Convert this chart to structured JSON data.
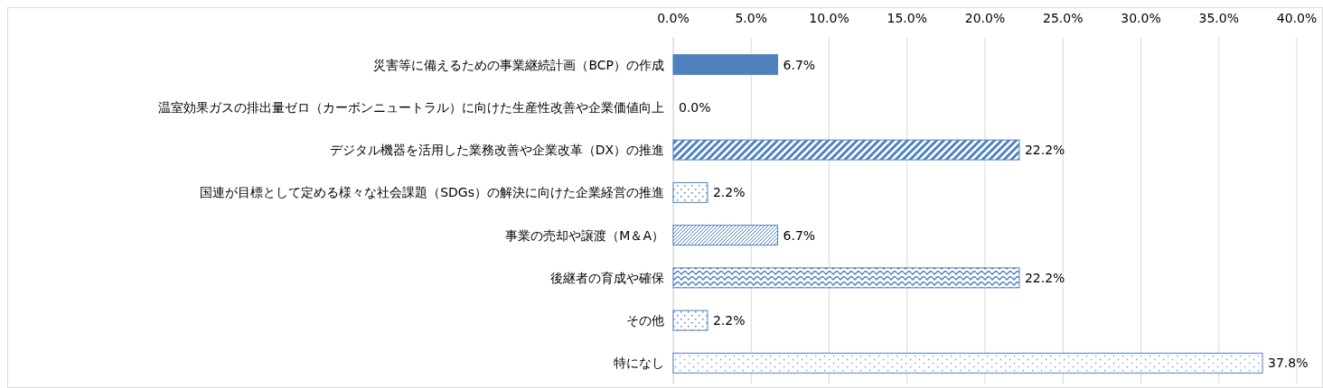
{
  "chart_data": {
    "type": "bar",
    "orientation": "horizontal",
    "categories": [
      "災害等に備えるための事業継続計画（BCP）の作成",
      "温室効果ガスの排出量ゼロ（カーボンニュートラル）に向けた生産性改善や企業価値向上",
      "デジタル機器を活用した業務改善や企業改革（DX）の推進",
      "国連が目標として定める様々な社会課題（SDGs）の解決に向けた企業経営の推進",
      "事業の売却や譲渡（M＆A）",
      "後継者の育成や確保",
      "その他",
      "特になし"
    ],
    "values": [
      6.7,
      0.0,
      22.2,
      2.2,
      6.7,
      22.2,
      2.2,
      37.8
    ],
    "value_labels": [
      "6.7%",
      "0.0%",
      "22.2%",
      "2.2%",
      "6.7%",
      "22.2%",
      "2.2%",
      "37.8%"
    ],
    "colors": [
      "#4f81bd",
      "#4f81bd",
      "#4f81bd",
      "#4f81bd",
      "#4f81bd",
      "#4f81bd",
      "#4f81bd",
      "#4f81bd"
    ],
    "xlim": [
      0,
      40
    ],
    "xticks": [
      {
        "value": 0,
        "label": "0.0%"
      },
      {
        "value": 5,
        "label": "5.0%"
      },
      {
        "value": 10,
        "label": "10.0%"
      },
      {
        "value": 15,
        "label": "15.0%"
      },
      {
        "value": 20,
        "label": "20.0%"
      },
      {
        "value": 25,
        "label": "25.0%"
      },
      {
        "value": 30,
        "label": "30.0%"
      },
      {
        "value": 35,
        "label": "35.0%"
      },
      {
        "value": 40,
        "label": "40.0%"
      }
    ],
    "grid": "x"
  }
}
